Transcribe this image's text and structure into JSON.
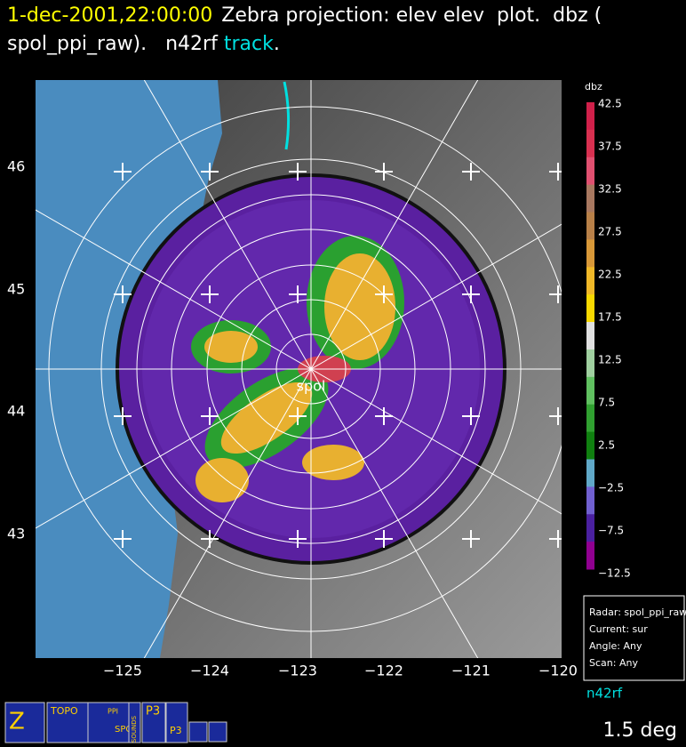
{
  "header": {
    "timestamp": "1-dec-2001,22:00:00",
    "description": "Zebra projection: elev elev  plot.  dbz (",
    "source": "spol_ppi_raw).   n42rf ",
    "track": "track",
    "period": "."
  },
  "map": {
    "lat_labels": [
      "46",
      "45",
      "44",
      "43"
    ],
    "lon_labels": [
      "−125",
      "−124",
      "−123",
      "−122",
      "−121",
      "−120"
    ],
    "radar_label": "spol"
  },
  "colorbar": {
    "title": "dbz",
    "labels": [
      "42.5",
      "37.5",
      "32.5",
      "27.5",
      "22.5",
      "17.5",
      "12.5",
      "7.5",
      "2.5",
      "−2.5",
      "−7.5",
      "−12.5"
    ]
  },
  "info": {
    "lines": [
      "Radar: spol_ppi_raw",
      "Current: sur",
      "Angle: Any",
      "Scan: Any"
    ]
  },
  "track_name": "n42rf",
  "toolbar": {
    "icons": [
      "Z",
      "TOPO",
      "PPI",
      "SPOL",
      "SOUNDS",
      "P3"
    ]
  },
  "elevation": "1.5 deg"
}
